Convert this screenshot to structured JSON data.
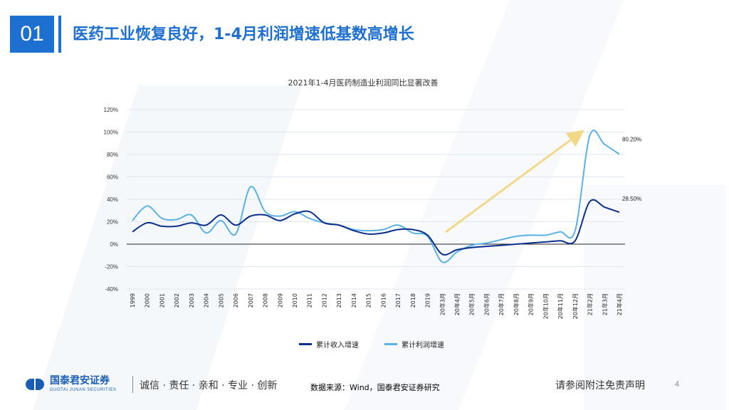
{
  "header": {
    "section_number": "01",
    "title": "医药工业恢复良好，1-4月利润增速低基数高增长"
  },
  "chart_data": {
    "type": "line",
    "title": "2021年1-4月医药制造业利润同比显著改善",
    "categories": [
      "1999",
      "2000",
      "2001",
      "2002",
      "2003",
      "2004",
      "2005",
      "2006",
      "2007",
      "2008",
      "2009",
      "2010",
      "2011",
      "2012",
      "2013",
      "2014",
      "2015",
      "2016",
      "2017",
      "2018",
      "2019",
      "20年3月",
      "20年4月",
      "20年5月",
      "20年6月",
      "20年7月",
      "20年8月",
      "20年9月",
      "20年10月",
      "20年11月",
      "20年12月",
      "21年2月",
      "21年3月",
      "21年4月"
    ],
    "ylim": [
      -40,
      120
    ],
    "yticks": [
      "120%",
      "100%",
      "80%",
      "60%",
      "40%",
      "20%",
      "0%",
      "-20%",
      "-40%"
    ],
    "series": [
      {
        "name": "累计收入增速",
        "color": "#0d2f8c",
        "values": [
          11,
          19,
          16,
          16,
          19,
          17,
          26,
          17,
          25,
          26,
          21,
          27,
          29,
          19,
          17,
          12,
          9,
          10,
          13,
          13,
          8,
          -9,
          -5,
          -3,
          -2,
          -1,
          0,
          1,
          2,
          3,
          3,
          38,
          33,
          28.5
        ]
      },
      {
        "name": "累计利润增速",
        "color": "#5ab1e6",
        "values": [
          21,
          34,
          23,
          22,
          26,
          10,
          21,
          9,
          51,
          29,
          25,
          29,
          23,
          19,
          17,
          13,
          12,
          13,
          17,
          10,
          7,
          -16,
          -7,
          -1,
          1,
          4,
          7,
          8,
          8,
          11,
          12,
          97,
          89,
          80.2
        ]
      }
    ],
    "annotations": [
      "80.20%",
      "28.50%"
    ],
    "arrow_color": "#f2d98a"
  },
  "legend": {
    "items": [
      {
        "label": "累计收入增速",
        "color": "#0d2f8c"
      },
      {
        "label": "累计利润增速",
        "color": "#5ab1e6"
      }
    ]
  },
  "footer": {
    "logo_cn": "国泰君安证券",
    "logo_en": "GUOTAI JUNAN SECURITIES",
    "slogan": "诚信 · 责任 · 亲和 · 专业 · 创新",
    "source": "数据来源：Wind，国泰君安证券研究",
    "disclaimer": "请参阅附注免责声明",
    "page_number": "4"
  }
}
